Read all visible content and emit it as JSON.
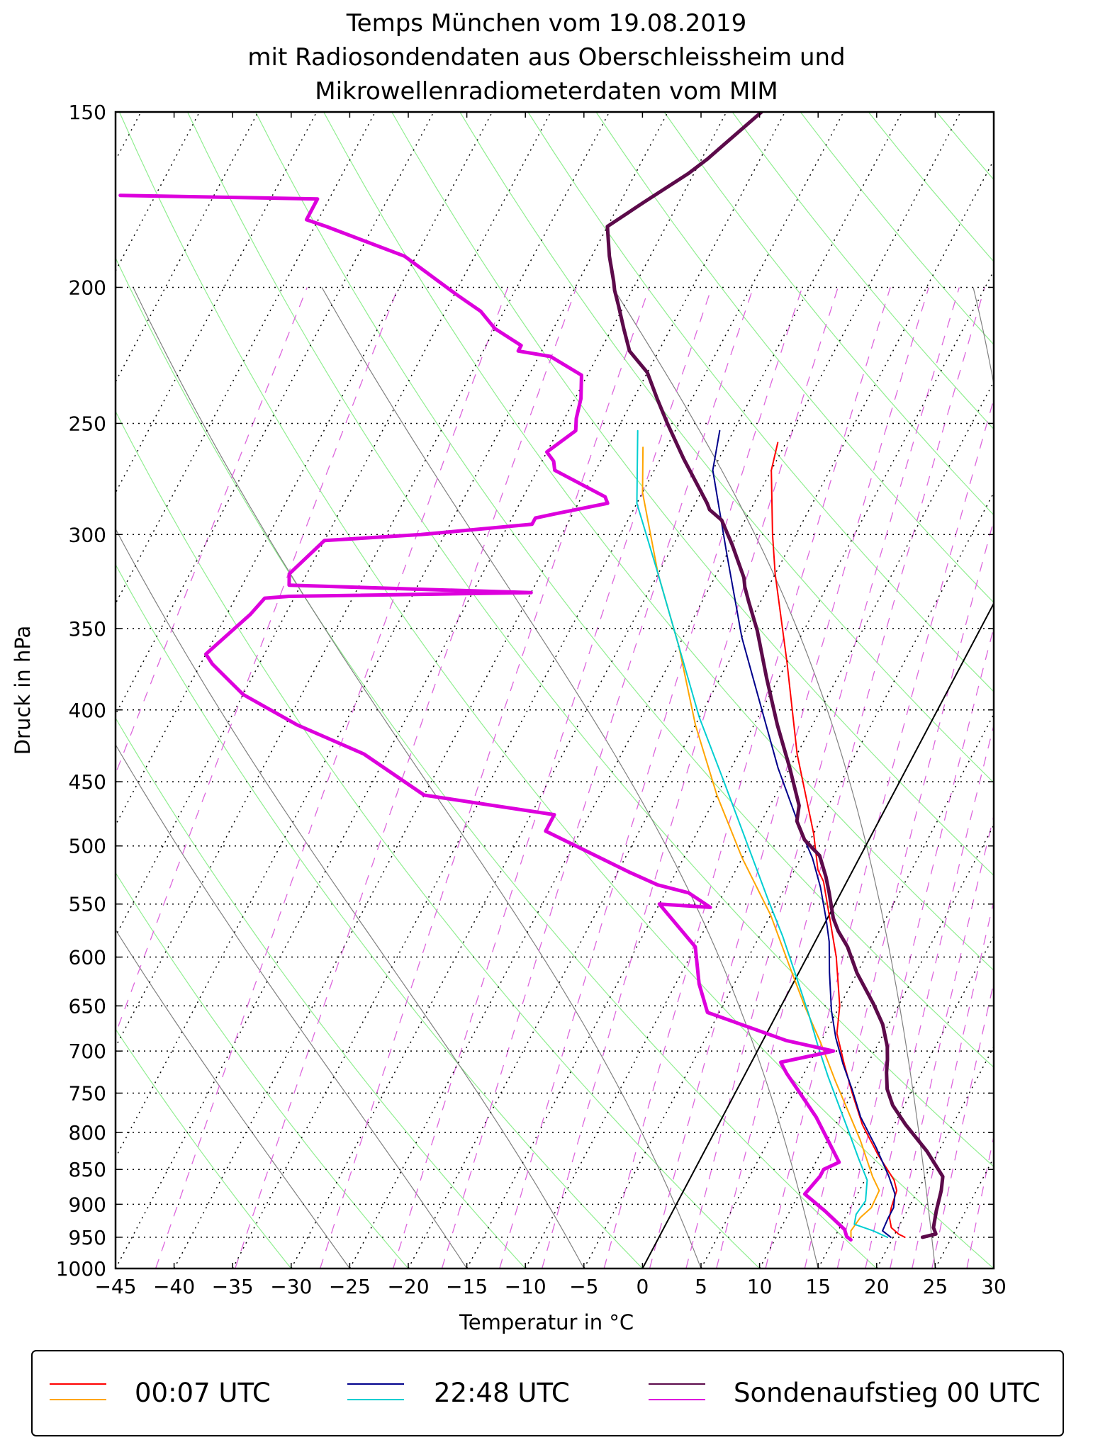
{
  "chart_data": {
    "type": "skew-t",
    "title": [
      "Temps München vom 19.08.2019",
      "mit Radiosondendaten aus Oberschleissheim und",
      "Mikrowellenradiometerdaten vom MIM"
    ],
    "xlabel_text": "Temperatur in",
    "xlabel_unit": "°C",
    "ylabel": "Druck in hPa",
    "xlim": [
      -45,
      30
    ],
    "ylim": [
      1000,
      150
    ],
    "xticks": [
      -45,
      -40,
      -35,
      -30,
      -25,
      -20,
      -15,
      -10,
      -5,
      0,
      5,
      10,
      15,
      20,
      25,
      30
    ],
    "xtick_labels": [
      "−45",
      "−40",
      "−35",
      "−30",
      "−25",
      "−20",
      "−15",
      "−10",
      "−5",
      "0",
      "5",
      "10",
      "15",
      "20",
      "25",
      "30"
    ],
    "yticks": [
      150,
      200,
      250,
      300,
      350,
      400,
      450,
      500,
      550,
      600,
      650,
      700,
      750,
      800,
      850,
      900,
      950,
      1000
    ],
    "ytick_labels": [
      "150",
      "200",
      "250",
      "300",
      "350",
      "400",
      "450",
      "500",
      "550",
      "600",
      "650",
      "700",
      "750",
      "800",
      "850",
      "900",
      "950",
      "1000"
    ],
    "colors": {
      "mwr_0007_T": "#ff0000",
      "mwr_0007_Td": "#ffa500",
      "mwr_2248_T": "#00008b",
      "mwr_2248_Td": "#00ced1",
      "sonde_T": "#5c0a4a",
      "sonde_Td": "#dd00dd",
      "dry_adiabat": "#90ee90",
      "moist_adiabat": "#808080",
      "mixing_ratio": "#dd66dd",
      "isotherm_0": "#000000"
    },
    "series": [
      {
        "name": "00:07 UTC Temperatur",
        "color": "#ff0000",
        "width": 2,
        "points": [
          [
            21,
            950
          ],
          [
            20.3,
            945
          ],
          [
            19.4,
            935
          ],
          [
            18.8,
            920
          ],
          [
            18.5,
            905
          ],
          [
            18.2,
            880
          ],
          [
            17.5,
            865
          ],
          [
            15,
            830
          ],
          [
            12.3,
            790
          ],
          [
            10,
            750
          ],
          [
            8,
            715
          ],
          [
            6,
            680
          ],
          [
            5,
            650
          ],
          [
            2.5,
            600
          ],
          [
            0,
            560
          ],
          [
            -2,
            530
          ],
          [
            -3,
            520
          ],
          [
            -5,
            490
          ],
          [
            -10,
            430
          ],
          [
            -15,
            370
          ],
          [
            -20,
            320
          ],
          [
            -22,
            300
          ],
          [
            -25,
            270
          ],
          [
            -25.7,
            258
          ]
        ]
      },
      {
        "name": "00:07 UTC Taupunkt",
        "color": "#ffa500",
        "width": 2,
        "points": [
          [
            16.4,
            950
          ],
          [
            16.1,
            940
          ],
          [
            16.3,
            920
          ],
          [
            16.8,
            905
          ],
          [
            16.7,
            880
          ],
          [
            15.5,
            860
          ],
          [
            12.8,
            810
          ],
          [
            10.3,
            770
          ],
          [
            8,
            735
          ],
          [
            5,
            690
          ],
          [
            2,
            650
          ],
          [
            -1,
            610
          ],
          [
            -5,
            560
          ],
          [
            -10,
            510
          ],
          [
            -15,
            460
          ],
          [
            -20,
            410
          ],
          [
            -25,
            360
          ],
          [
            -30,
            320
          ],
          [
            -35,
            280
          ],
          [
            -37,
            260
          ]
        ]
      },
      {
        "name": "22:48 UTC Temperatur",
        "color": "#00008b",
        "width": 2,
        "points": [
          [
            19.8,
            950
          ],
          [
            18.8,
            940
          ],
          [
            18.7,
            920
          ],
          [
            18.7,
            905
          ],
          [
            18.2,
            885
          ],
          [
            16.9,
            860
          ],
          [
            14.5,
            820
          ],
          [
            11.8,
            780
          ],
          [
            9.8,
            745
          ],
          [
            7.9,
            715
          ],
          [
            6.1,
            685
          ],
          [
            4.5,
            655
          ],
          [
            2.6,
            615
          ],
          [
            1.2,
            585
          ],
          [
            0,
            565
          ],
          [
            -2,
            535
          ],
          [
            -4,
            510
          ],
          [
            -6,
            490
          ],
          [
            -11,
            440
          ],
          [
            -15,
            400
          ],
          [
            -20,
            355
          ],
          [
            -25,
            310
          ],
          [
            -30,
            270
          ],
          [
            -31.2,
            253
          ]
        ]
      },
      {
        "name": "22:48 UTC Taupunkt",
        "color": "#00ced1",
        "width": 2,
        "points": [
          [
            19.5,
            950
          ],
          [
            18,
            940
          ],
          [
            16.1,
            930
          ],
          [
            15.8,
            915
          ],
          [
            16,
            895
          ],
          [
            15.2,
            865
          ],
          [
            13.5,
            835
          ],
          [
            11.5,
            800
          ],
          [
            9.4,
            765
          ],
          [
            7.2,
            730
          ],
          [
            5,
            695
          ],
          [
            2.8,
            660
          ],
          [
            0,
            620
          ],
          [
            -3,
            580
          ],
          [
            -6,
            545
          ],
          [
            -11,
            490
          ],
          [
            -15,
            450
          ],
          [
            -20,
            405
          ],
          [
            -25,
            360
          ],
          [
            -30,
            320
          ],
          [
            -35,
            285
          ],
          [
            -38.2,
            253
          ]
        ]
      },
      {
        "name": "Sondenaufstieg 00 UTC Temperatur",
        "color": "#5c0a4a",
        "width": 5,
        "points": [
          [
            22.5,
            950
          ],
          [
            23.5,
            945
          ],
          [
            23,
            935
          ],
          [
            22.5,
            910
          ],
          [
            22,
            880
          ],
          [
            21.5,
            860
          ],
          [
            19,
            825
          ],
          [
            16,
            790
          ],
          [
            14,
            765
          ],
          [
            12.8,
            745
          ],
          [
            12,
            725
          ],
          [
            11.5,
            710
          ],
          [
            10.9,
            695
          ],
          [
            9.5,
            670
          ],
          [
            7.8,
            648
          ],
          [
            5,
            616
          ],
          [
            3,
            590
          ],
          [
            1.5,
            575
          ],
          [
            0.5,
            563
          ],
          [
            -1,
            540
          ],
          [
            -2,
            526
          ],
          [
            -3.5,
            508
          ],
          [
            -5.5,
            495
          ],
          [
            -7,
            480
          ],
          [
            -7.5,
            468
          ],
          [
            -10,
            440
          ],
          [
            -13,
            410
          ],
          [
            -16,
            380
          ],
          [
            -19,
            351
          ],
          [
            -21,
            335
          ],
          [
            -22,
            327
          ],
          [
            -22.5,
            322
          ],
          [
            -25,
            305
          ],
          [
            -27,
            293
          ],
          [
            -28.5,
            288
          ],
          [
            -29,
            285
          ],
          [
            -33,
            265
          ],
          [
            -36,
            250
          ],
          [
            -38,
            240
          ],
          [
            -40,
            230
          ],
          [
            -42.5,
            222
          ],
          [
            -44,
            214
          ],
          [
            -45.5,
            206
          ],
          [
            -46.5,
            201
          ],
          [
            -47,
            198
          ],
          [
            -48.5,
            190
          ],
          [
            -50,
            181
          ],
          [
            -48,
            174
          ],
          [
            -45.5,
            166
          ],
          [
            -44.5,
            162
          ],
          [
            -42,
            150
          ]
        ]
      },
      {
        "name": "Sondenaufstieg 00 UTC Taupunkt",
        "color": "#dd00dd",
        "width": 5,
        "points": [
          [
            16.5,
            954
          ],
          [
            16,
            949
          ],
          [
            15.5,
            938
          ],
          [
            13,
            910
          ],
          [
            10.5,
            885
          ],
          [
            11,
            860
          ],
          [
            11,
            850
          ],
          [
            11.5,
            845
          ],
          [
            12,
            840
          ],
          [
            8,
            780
          ],
          [
            3.5,
            726
          ],
          [
            2.5,
            713
          ],
          [
            6.5,
            700
          ],
          [
            2,
            688
          ],
          [
            -6,
            657
          ],
          [
            -8,
            627
          ],
          [
            -10,
            590
          ],
          [
            -15,
            550
          ],
          [
            -10.5,
            553
          ],
          [
            -13,
            540
          ],
          [
            -16,
            533
          ],
          [
            -19,
            522
          ],
          [
            -28,
            488
          ],
          [
            -28,
            475
          ],
          [
            -40,
            460
          ],
          [
            -47,
            430
          ],
          [
            -54,
            410
          ],
          [
            -60,
            390
          ],
          [
            -64,
            371
          ],
          [
            -65,
            365
          ],
          [
            -63,
            342
          ],
          [
            -62.5,
            333
          ],
          [
            -60.5,
            332
          ],
          [
            -40,
            330
          ],
          [
            -61,
            326
          ],
          [
            -61.5,
            320
          ],
          [
            -60,
            303
          ],
          [
            -52,
            300
          ],
          [
            -43,
            295
          ],
          [
            -43,
            292
          ],
          [
            -41.5,
            290
          ],
          [
            -37.5,
            285
          ],
          [
            -38,
            282
          ],
          [
            -43.5,
            270
          ],
          [
            -44,
            266
          ],
          [
            -45,
            262
          ],
          [
            -43.5,
            253
          ],
          [
            -44,
            248
          ],
          [
            -44.5,
            240
          ],
          [
            -45.5,
            231
          ],
          [
            -49,
            224
          ],
          [
            -52,
            222
          ],
          [
            -52,
            220
          ],
          [
            -55,
            214
          ],
          [
            -57,
            208
          ],
          [
            -59,
            204
          ],
          [
            -60,
            202
          ],
          [
            -66,
            190
          ],
          [
            -74,
            181
          ],
          [
            -76,
            179
          ],
          [
            -76,
            173
          ],
          [
            -93,
            172
          ]
        ]
      }
    ]
  },
  "legend": [
    {
      "label": "00:07 UTC",
      "color_top": "#ff0000",
      "color_bottom": "#ffa500"
    },
    {
      "label": "22:48 UTC",
      "color_top": "#00008b",
      "color_bottom": "#00ced1"
    },
    {
      "label": "Sondenaufstieg 00 UTC",
      "color_top": "#5c0a4a",
      "color_bottom": "#dd00dd"
    }
  ]
}
